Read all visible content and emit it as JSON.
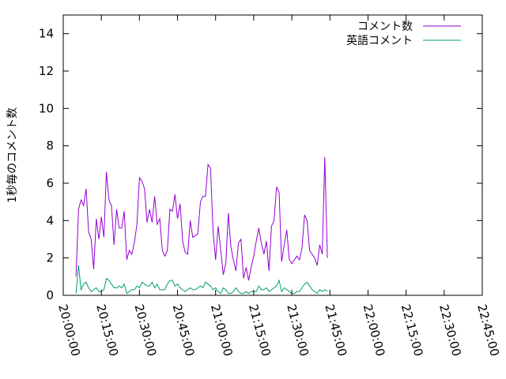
{
  "chart_data": {
    "type": "line",
    "xlabel": "",
    "ylabel": "1秒毎のコメント数",
    "xlim_seconds": [
      72000,
      81900
    ],
    "x_ticks": [
      "20:00:00",
      "20:15:00",
      "20:30:00",
      "20:45:00",
      "21:00:00",
      "21:15:00",
      "21:30:00",
      "21:45:00",
      "22:00:00",
      "22:15:00",
      "22:30:00",
      "22:45:00"
    ],
    "ylim": [
      0,
      15
    ],
    "y_ticks": [
      "0",
      "2",
      "4",
      "6",
      "8",
      "10",
      "12",
      "14"
    ],
    "grid": false,
    "legend_position": "top-right",
    "x_sample_interval_seconds": 60,
    "x_start": "20:00:00",
    "series": [
      {
        "name": "コメント数",
        "color": "#9400d3",
        "values": [
          1.0,
          4.6,
          5.1,
          4.8,
          5.7,
          3.4,
          3.0,
          1.4,
          4.1,
          3.0,
          4.2,
          3.1,
          6.6,
          5.1,
          4.8,
          2.7,
          4.6,
          3.6,
          3.6,
          4.5,
          1.9,
          2.4,
          2.2,
          2.8,
          3.8,
          6.3,
          6.1,
          5.7,
          3.9,
          4.6,
          3.9,
          5.3,
          3.8,
          4.1,
          2.4,
          2.1,
          2.4,
          4.6,
          4.5,
          5.4,
          4.1,
          4.9,
          2.9,
          2.3,
          2.2,
          4.0,
          3.1,
          3.2,
          3.3,
          5.0,
          5.3,
          5.3,
          7.0,
          6.8,
          3.4,
          1.9,
          3.7,
          2.4,
          1.1,
          1.7,
          4.4,
          2.6,
          1.9,
          1.3,
          2.8,
          3.0,
          0.9,
          1.5,
          0.8,
          1.5,
          2.1,
          2.9,
          3.6,
          2.8,
          2.2,
          2.9,
          1.3,
          3.7,
          4.0,
          5.8,
          5.5,
          1.8,
          2.7,
          3.5,
          1.9,
          1.7,
          1.9,
          2.1,
          1.9,
          2.5,
          4.3,
          4.0,
          2.4,
          2.2,
          2.0,
          1.6,
          2.7,
          2.2,
          7.4,
          2.0
        ]
      },
      {
        "name": "英語コメント",
        "color": "#009e73",
        "values": [
          0.1,
          1.6,
          0.3,
          0.6,
          0.7,
          0.4,
          0.2,
          0.3,
          0.4,
          0.2,
          0.2,
          0.3,
          0.9,
          0.8,
          0.6,
          0.4,
          0.4,
          0.5,
          0.4,
          0.6,
          0.1,
          0.2,
          0.3,
          0.3,
          0.5,
          0.4,
          0.7,
          0.6,
          0.5,
          0.5,
          0.7,
          0.4,
          0.6,
          0.3,
          0.3,
          0.3,
          0.6,
          0.8,
          0.8,
          0.5,
          0.6,
          0.4,
          0.3,
          0.2,
          0.3,
          0.4,
          0.3,
          0.3,
          0.4,
          0.5,
          0.4,
          0.7,
          0.6,
          0.5,
          0.3,
          0.4,
          0.2,
          0.1,
          0.4,
          0.3,
          0.1,
          0.1,
          0.2,
          0.4,
          0.2,
          0.1,
          0.1,
          0.2,
          0.1,
          0.2,
          0.2,
          0.2,
          0.5,
          0.3,
          0.3,
          0.4,
          0.2,
          0.3,
          0.4,
          0.5,
          0.8,
          0.2,
          0.4,
          0.3,
          0.2,
          0.1,
          0.1,
          0.2,
          0.2,
          0.4,
          0.6,
          0.7,
          0.5,
          0.3,
          0.2,
          0.1,
          0.3,
          0.2,
          0.3,
          0.2
        ]
      }
    ]
  }
}
